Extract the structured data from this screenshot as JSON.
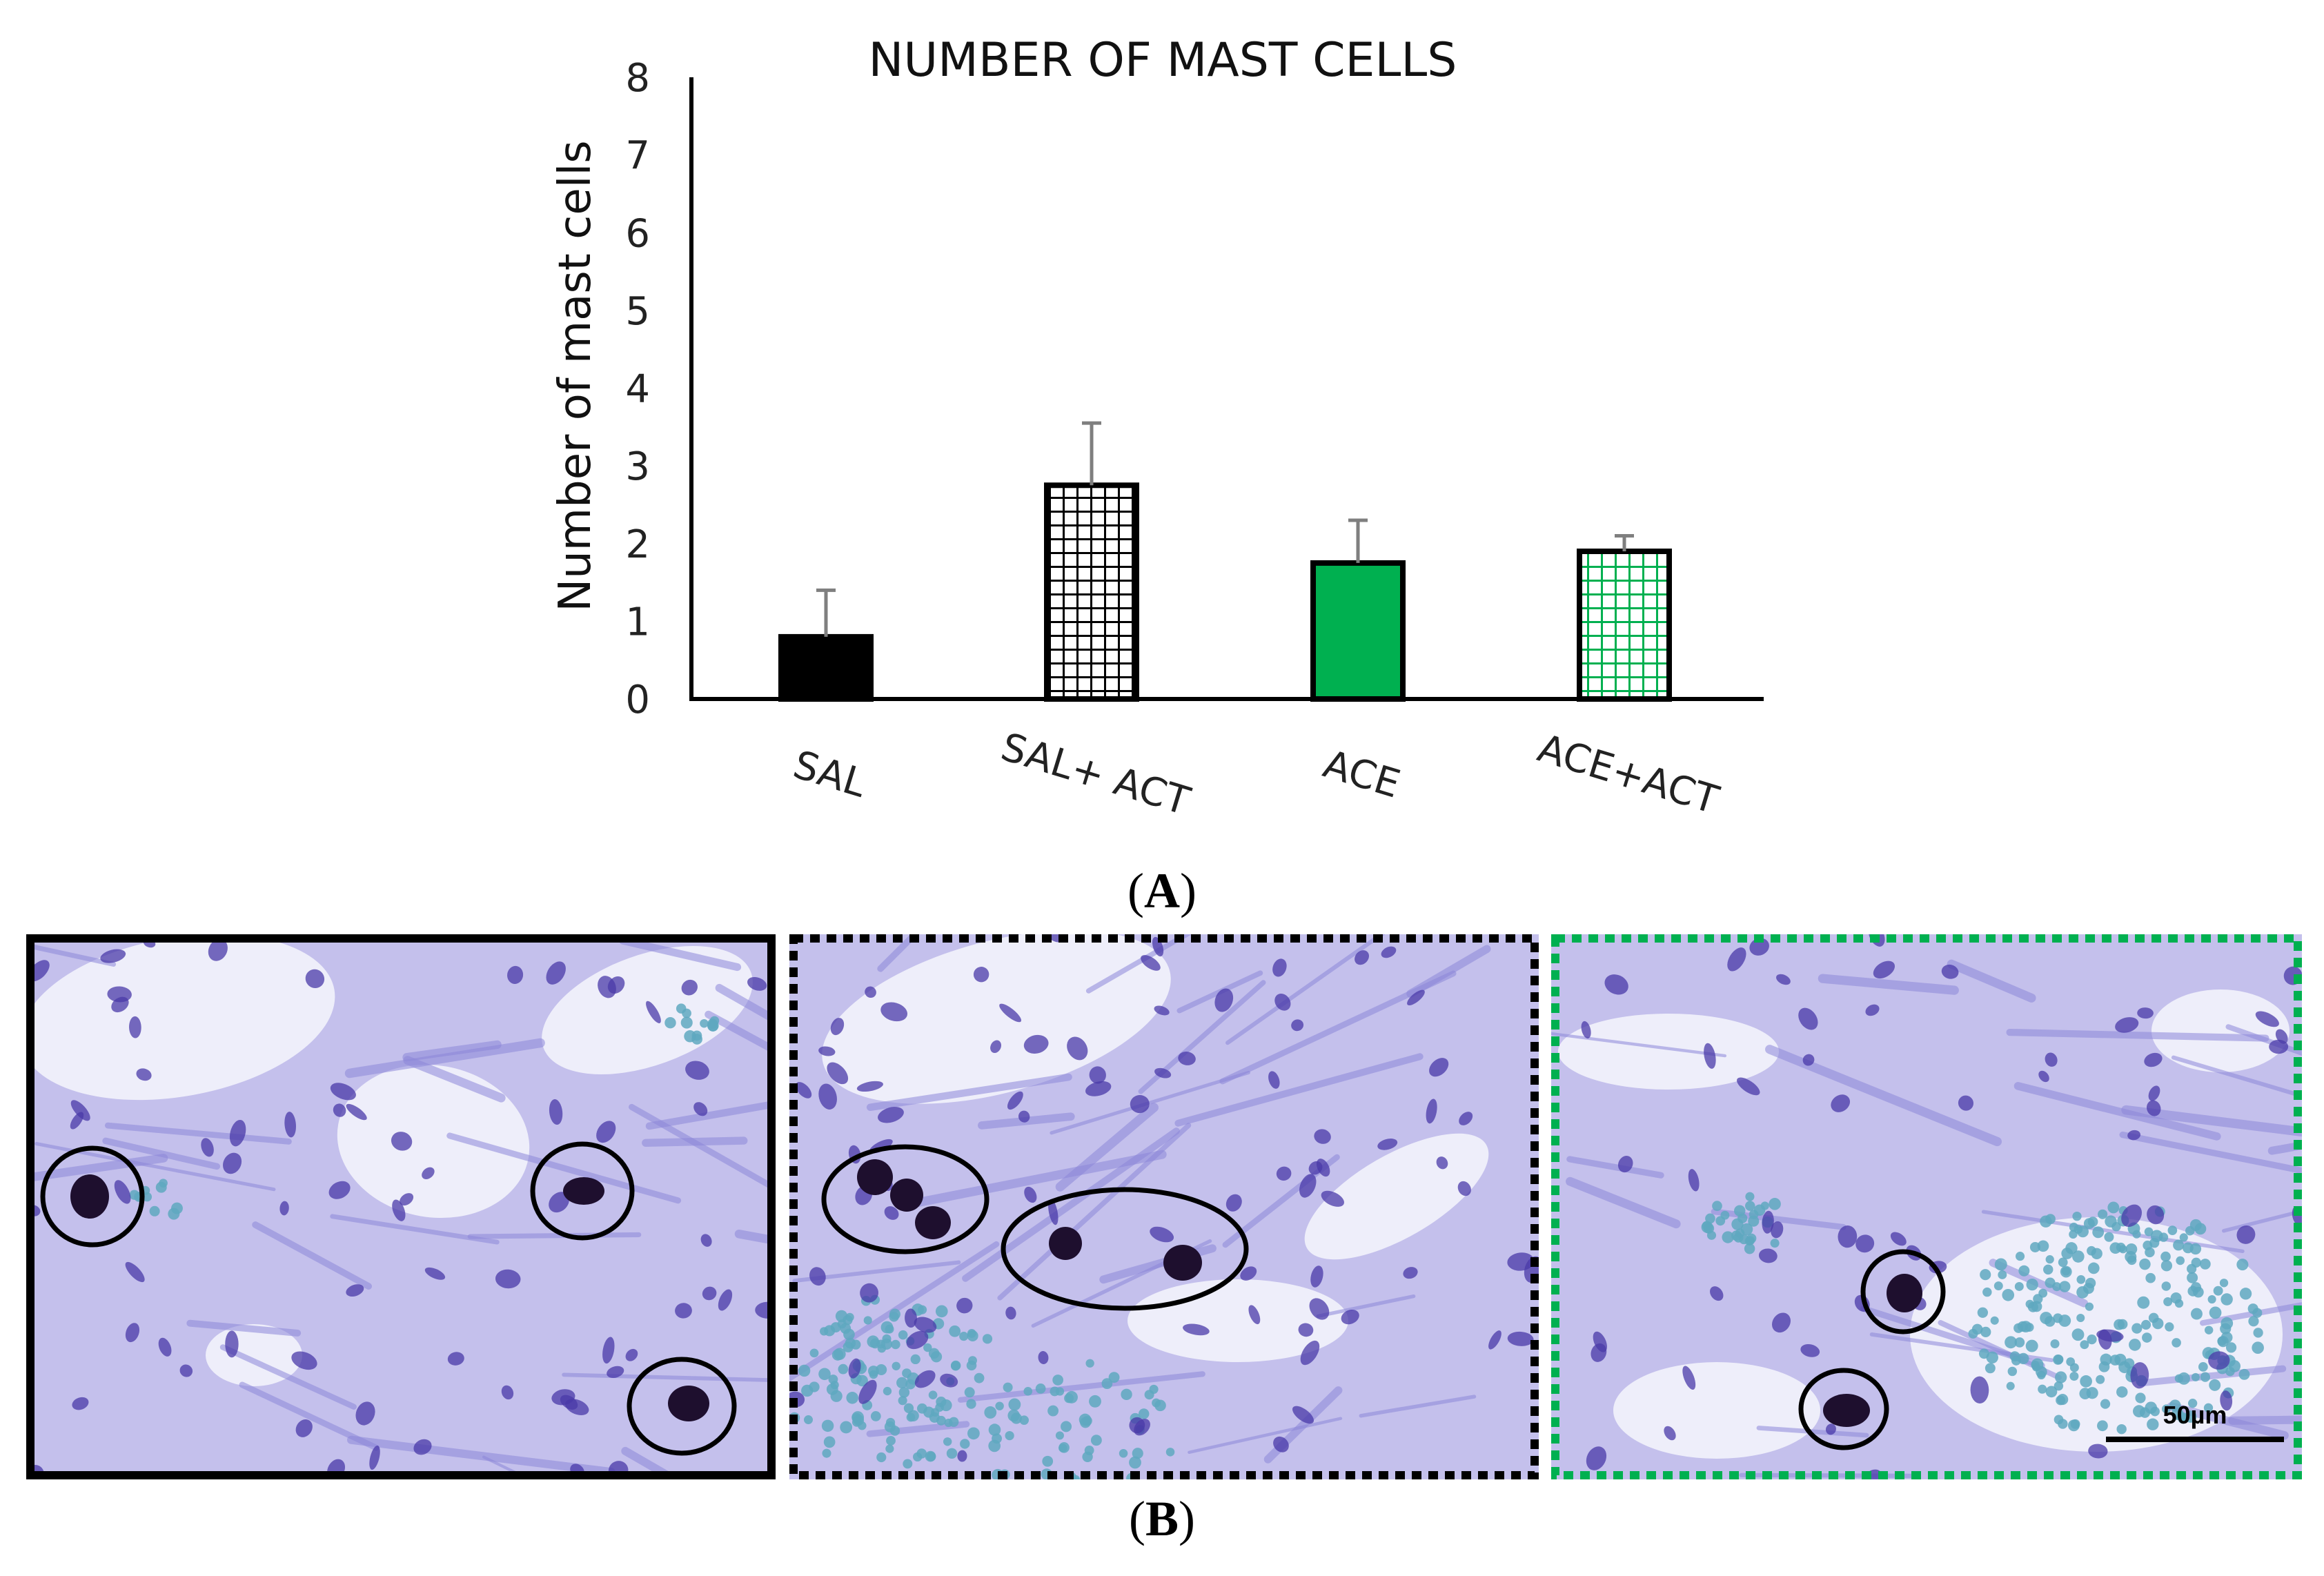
{
  "chart_data": {
    "type": "bar",
    "title": "NUMBER OF MAST CELLS",
    "xlabel": "",
    "ylabel": "Number of mast cells",
    "ylim": [
      0,
      8
    ],
    "yticks": [
      "0",
      "1",
      "2",
      "3",
      "4",
      "5",
      "6",
      "7",
      "8"
    ],
    "categories": [
      "SAL",
      "SAL+ ACT",
      "ACE",
      "ACE+ACT"
    ],
    "values": [
      0.8,
      2.75,
      1.75,
      1.9
    ],
    "errors": [
      0.6,
      0.8,
      0.55,
      0.2
    ],
    "fills": [
      "solid-black",
      "black-grid",
      "solid-green",
      "green-grid"
    ],
    "colors": {
      "black": "#000000",
      "green": "#00b050",
      "errorbar": "#7f7f7f"
    },
    "grid": false,
    "legend": "none"
  },
  "panels": {
    "a_label_open": "(",
    "a_label_letter": "A",
    "a_label_close": ")",
    "b_label_open": "(",
    "b_label_letter": "B",
    "b_label_close": ")"
  },
  "micrographs": [
    {
      "border": "solid-black",
      "marked_cells": 3
    },
    {
      "border": "dotted-black",
      "marked_cells": 5
    },
    {
      "border": "dotted-green",
      "marked_cells": 2
    }
  ],
  "scale_bar": {
    "label": "50µm"
  },
  "colors": {
    "tissue": "#8c86d8",
    "nucleus": "#4a3aa8",
    "mast_cell": "#1e0f2e",
    "rbc": "#5fa8c0"
  }
}
